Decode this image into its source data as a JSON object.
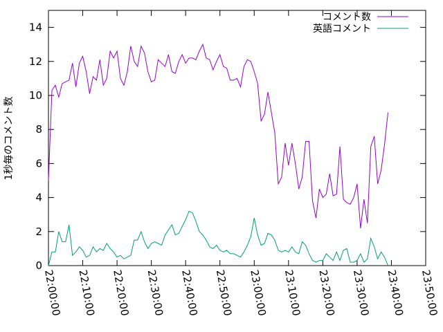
{
  "chart_data": {
    "type": "line",
    "ylabel": "1秒毎のコメント数",
    "xlabel": "",
    "title": "",
    "x_start": "22:00:00",
    "x_step_seconds": 60,
    "xlim": [
      "22:00:00",
      "23:50:00"
    ],
    "ylim": [
      0,
      15
    ],
    "y_ticks": [
      0,
      2,
      4,
      6,
      8,
      10,
      12,
      14
    ],
    "x_ticks": [
      "22:00:00",
      "22:10:00",
      "22:20:00",
      "22:30:00",
      "22:40:00",
      "22:50:00",
      "23:00:00",
      "23:10:00",
      "23:20:00",
      "23:30:00",
      "23:40:00",
      "23:50:00"
    ],
    "grid": false,
    "legend_position": "top-right",
    "series": [
      {
        "name": "コメント数",
        "color": "#9400D3",
        "values": [
          5.0,
          10.3,
          10.6,
          9.9,
          10.7,
          10.8,
          10.9,
          11.9,
          10.5,
          11.9,
          12.3,
          11.4,
          10.1,
          11.1,
          10.9,
          12.1,
          10.6,
          11.0,
          12.6,
          12.2,
          12.6,
          11.0,
          10.6,
          11.4,
          12.9,
          12.0,
          11.7,
          12.9,
          12.5,
          11.4,
          10.8,
          10.9,
          12.1,
          11.9,
          11.7,
          12.4,
          11.4,
          11.3,
          12.0,
          12.4,
          11.9,
          12.2,
          12.2,
          12.1,
          12.6,
          13.0,
          12.2,
          12.1,
          11.5,
          12.0,
          12.4,
          11.7,
          11.6,
          10.9,
          10.9,
          11.0,
          10.5,
          11.7,
          12.1,
          12.0,
          11.4,
          10.7,
          8.5,
          8.9,
          10.2,
          9.0,
          7.8,
          4.8,
          5.2,
          7.2,
          5.9,
          7.2,
          6.0,
          4.5,
          5.2,
          7.3,
          7.3,
          3.8,
          2.8,
          4.5,
          4.0,
          4.2,
          5.4,
          4.1,
          4.2,
          7.0,
          3.9,
          3.7,
          3.6,
          4.0,
          4.8,
          2.2,
          3.9,
          2.5,
          7.0,
          7.6,
          4.8,
          5.6,
          7.1,
          9.0
        ]
      },
      {
        "name": "英語コメント",
        "color": "#009E73",
        "values": [
          0.0,
          0.8,
          0.8,
          2.0,
          1.4,
          1.4,
          2.4,
          0.6,
          0.8,
          1.1,
          0.9,
          0.5,
          0.6,
          1.1,
          0.8,
          1.0,
          0.9,
          1.3,
          1.0,
          0.8,
          0.5,
          0.6,
          0.4,
          0.5,
          0.6,
          1.5,
          1.5,
          2.0,
          1.4,
          1.0,
          1.3,
          1.4,
          1.3,
          1.2,
          1.8,
          2.1,
          2.4,
          1.8,
          1.9,
          2.3,
          2.7,
          3.2,
          3.1,
          2.6,
          2.0,
          1.8,
          1.5,
          1.1,
          1.0,
          1.2,
          0.9,
          0.8,
          0.9,
          0.7,
          0.7,
          0.6,
          0.5,
          0.8,
          1.2,
          1.7,
          2.8,
          1.8,
          1.2,
          1.3,
          1.9,
          1.8,
          1.5,
          0.9,
          0.8,
          0.9,
          0.8,
          1.1,
          0.8,
          0.7,
          1.4,
          1.2,
          0.7,
          0.3,
          0.2,
          0.3,
          0.3,
          0.7,
          0.5,
          0.3,
          0.8,
          0.3,
          0.9,
          1.0,
          0.2,
          0.2,
          0.3,
          0.7,
          0.2,
          0.4,
          1.6,
          1.1,
          0.4,
          0.8,
          0.5,
          0.0
        ]
      }
    ]
  }
}
